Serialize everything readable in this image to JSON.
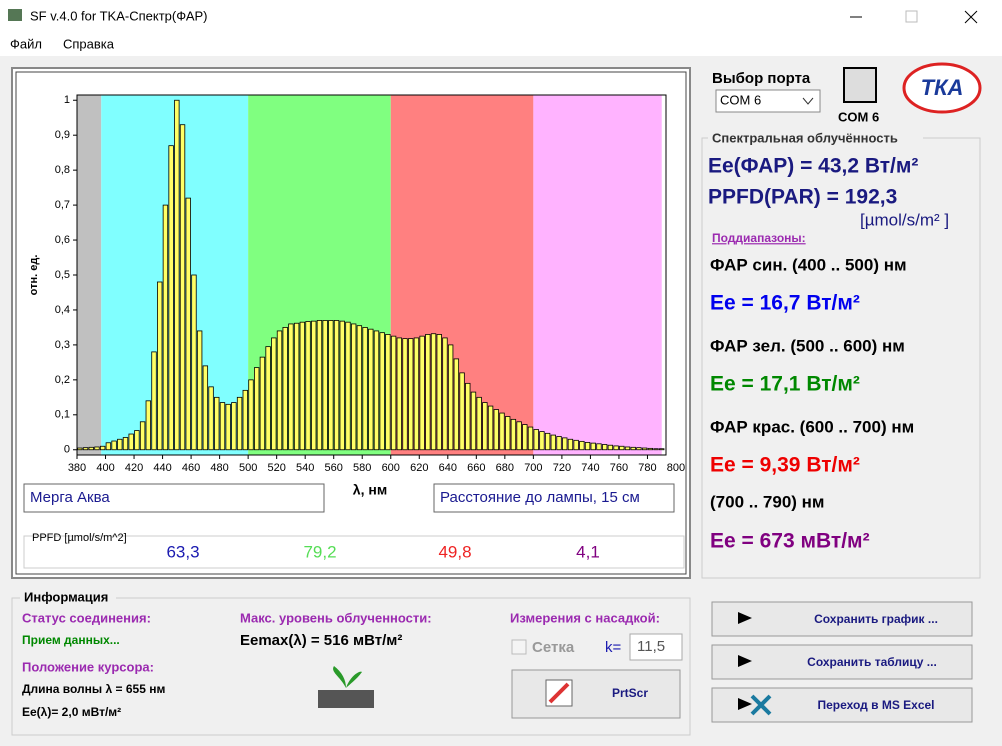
{
  "window": {
    "title": "SF v.4.0 for TKA-Спектр(ФАР)"
  },
  "menu": [
    "Файл",
    "Справка"
  ],
  "chart_data": {
    "type": "bar",
    "ylabel": "отн. ед.",
    "xlabel": "λ, нм",
    "color": "#ffff66",
    "bands": [
      {
        "from": 380,
        "to": 397,
        "color": "#c0c0c0"
      },
      {
        "from": 397,
        "to": 500,
        "color": "#80ffff"
      },
      {
        "from": 500,
        "to": 600,
        "color": "#80ff80"
      },
      {
        "from": 600,
        "to": 700,
        "color": "#ff8080"
      },
      {
        "from": 700,
        "to": 790,
        "color": "#ffb3ff"
      }
    ],
    "x": [
      382,
      386,
      390,
      394,
      398,
      402,
      406,
      410,
      414,
      418,
      422,
      426,
      430,
      434,
      438,
      442,
      446,
      450,
      454,
      458,
      462,
      466,
      470,
      474,
      478,
      482,
      486,
      490,
      494,
      498,
      502,
      506,
      510,
      514,
      518,
      522,
      526,
      530,
      534,
      538,
      542,
      546,
      550,
      554,
      558,
      562,
      566,
      570,
      574,
      578,
      582,
      586,
      590,
      594,
      598,
      602,
      606,
      610,
      614,
      618,
      622,
      626,
      630,
      634,
      638,
      642,
      646,
      650,
      654,
      658,
      662,
      666,
      670,
      674,
      678,
      682,
      686,
      690,
      694,
      698,
      702,
      706,
      710,
      714,
      718,
      722,
      726,
      730,
      734,
      738,
      742,
      746,
      750,
      754,
      758,
      762,
      766,
      770,
      774,
      778,
      782,
      786,
      790
    ],
    "values": [
      0.005,
      0.006,
      0.007,
      0.008,
      0.01,
      0.02,
      0.025,
      0.03,
      0.035,
      0.045,
      0.055,
      0.08,
      0.14,
      0.28,
      0.48,
      0.7,
      0.87,
      1.0,
      0.93,
      0.72,
      0.5,
      0.34,
      0.24,
      0.18,
      0.15,
      0.135,
      0.13,
      0.135,
      0.15,
      0.17,
      0.2,
      0.235,
      0.265,
      0.295,
      0.32,
      0.34,
      0.35,
      0.36,
      0.362,
      0.365,
      0.367,
      0.368,
      0.37,
      0.37,
      0.37,
      0.37,
      0.368,
      0.365,
      0.36,
      0.355,
      0.35,
      0.345,
      0.34,
      0.335,
      0.33,
      0.325,
      0.32,
      0.318,
      0.318,
      0.32,
      0.325,
      0.33,
      0.332,
      0.33,
      0.32,
      0.3,
      0.26,
      0.22,
      0.19,
      0.165,
      0.15,
      0.135,
      0.125,
      0.115,
      0.105,
      0.095,
      0.087,
      0.08,
      0.072,
      0.065,
      0.058,
      0.052,
      0.047,
      0.042,
      0.038,
      0.034,
      0.03,
      0.027,
      0.024,
      0.021,
      0.019,
      0.017,
      0.015,
      0.013,
      0.011,
      0.01,
      0.008,
      0.007,
      0.006,
      0.005,
      0.004,
      0.003,
      0.003
    ],
    "xlim": [
      380,
      793
    ],
    "ylim": [
      -0.015,
      1.015
    ],
    "xticks": [
      380,
      400,
      420,
      440,
      460,
      480,
      500,
      520,
      540,
      560,
      580,
      600,
      620,
      640,
      660,
      680,
      700,
      720,
      740,
      760,
      780,
      800
    ],
    "yticks": [
      0,
      {
        "value": 0.1,
        "label": "0,1"
      },
      {
        "value": 0.2,
        "label": "0,2"
      },
      {
        "value": 0.3,
        "label": "0,3"
      },
      {
        "value": 0.4,
        "label": "0,4"
      },
      {
        "value": 0.5,
        "label": "0,5"
      },
      {
        "value": 0.6,
        "label": "0,6"
      },
      {
        "value": 0.7,
        "label": "0,7"
      },
      {
        "value": 0.8,
        "label": "0,8"
      },
      {
        "value": 0.9,
        "label": "0,9"
      },
      1
    ]
  },
  "chart_panel": {
    "sample": "Мерга  Аква",
    "distance": "Расстояние до лампы, 15 см",
    "ppfd_label": "PPFD [µmol/s/m^2]",
    "ppfd_values": [
      "63,3",
      "79,2",
      "49,8",
      "4,1"
    ]
  },
  "port": {
    "label": "Выбор порта",
    "selected": "COM 6",
    "icon_label": "COM  6"
  },
  "logo": "ТКА",
  "irradiance": {
    "title": "Спектральная облучённость",
    "ee_par": "Ee(ФАР) = 43,2 Вт/м²",
    "ppfd": "PPFD(PAR) = 192,3",
    "ppfd_unit": "[µmol/s/m² ]",
    "subranges_label": "Поддиапазоны:",
    "ranges": [
      {
        "label": "ФАР син. (400 .. 500) нм",
        "value": "Ee = 16,7 Вт/м²"
      },
      {
        "label": "ФАР зел. (500 .. 600) нм",
        "value": "Ee = 17,1 Вт/м²"
      },
      {
        "label": "ФАР крас. (600 .. 700) нм",
        "value": "Ee = 9,39 Вт/м²"
      },
      {
        "label": "(700 .. 790) нм",
        "value": "Ee = 673 мВт/м²"
      }
    ]
  },
  "info": {
    "title": "Информация",
    "status_label": "Статус соединения:",
    "status": "Прием данных...",
    "cursor_label": "Положение курсора:",
    "wavelength": "Длина волны λ  = 655 нм",
    "ee_cursor": "Ee(λ)= 2,0 мВт/м²",
    "max_label": "Макс. уровень облученности:",
    "max_value": "Eemax(λ) = 516 мВт/м²",
    "attachment_label": "Измерения с насадкой:",
    "grid_checkbox": "Сетка",
    "k_label": "k=",
    "k_value": "11,5",
    "prtscr": "PrtScr"
  },
  "buttons": [
    "Сохранить график ...",
    "Сохранить таблицу ...",
    "Переход в MS Excel"
  ]
}
